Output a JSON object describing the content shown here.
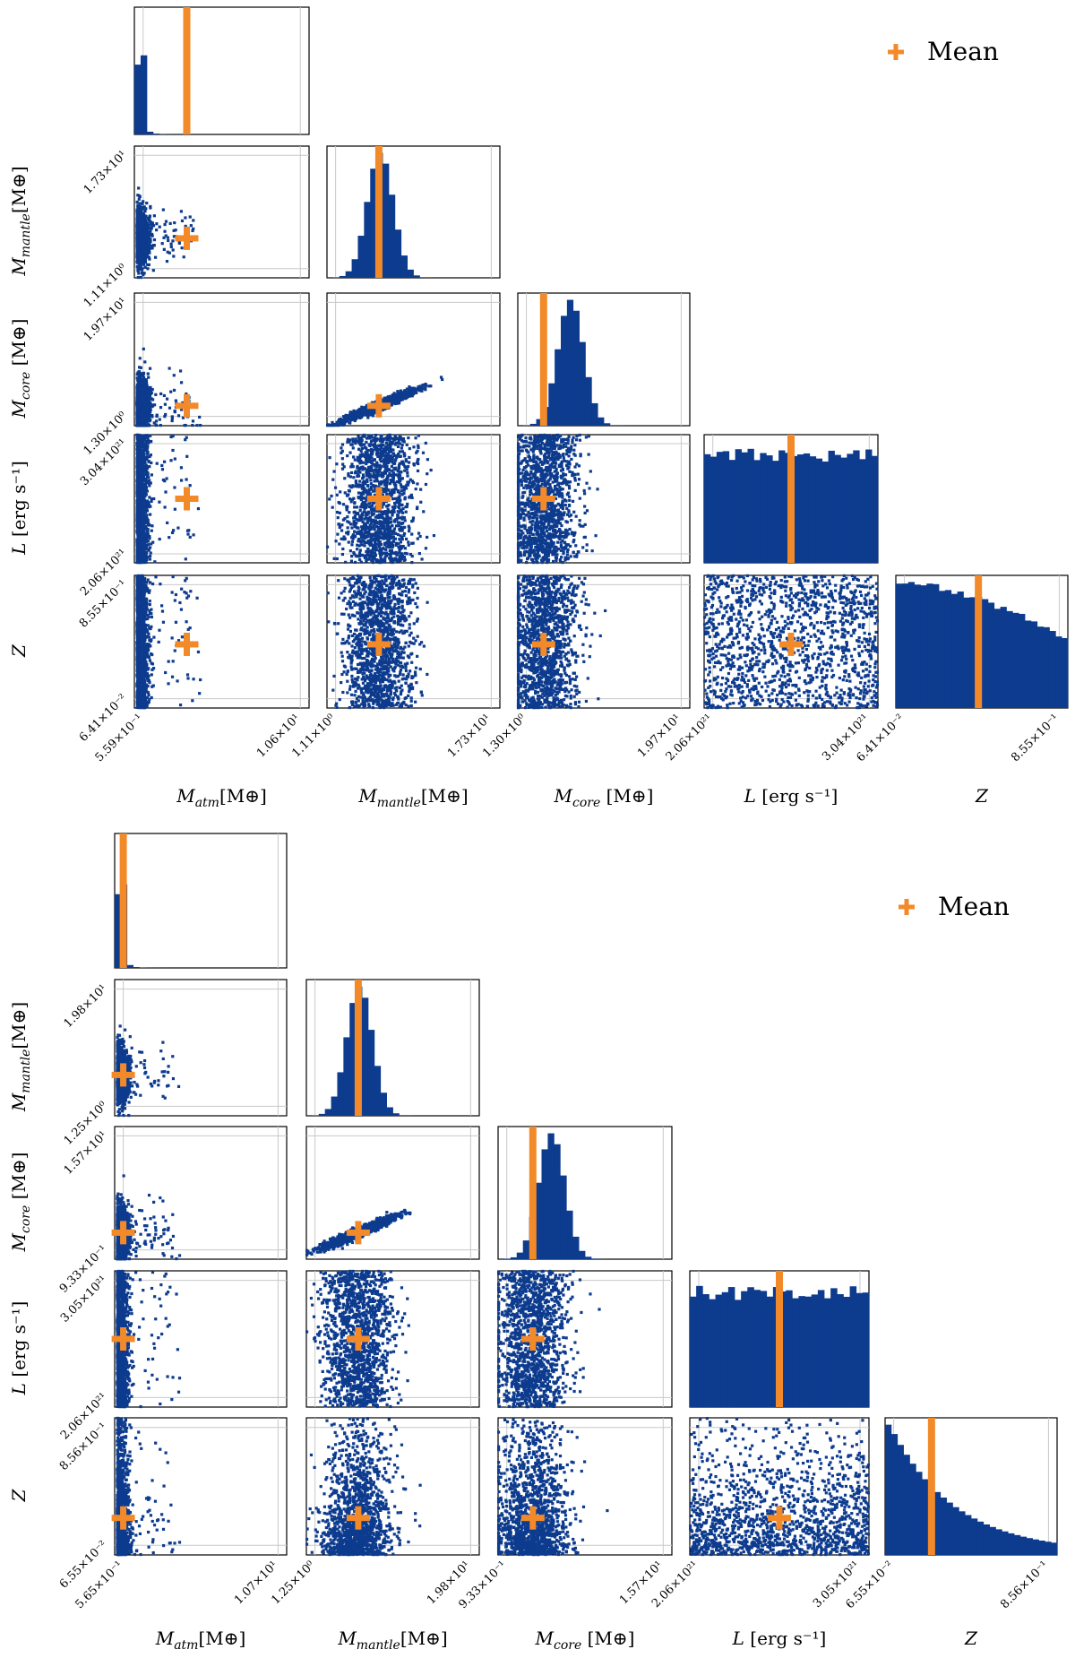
{
  "chart_data": [
    {
      "type": "corner",
      "legend": {
        "label": "Mean",
        "marker": "+",
        "location": "top-right"
      },
      "parameters": [
        {
          "label_main": "M",
          "label_sub": "atm",
          "label_rest": "[M⊕]",
          "ticks": [
            "5.59×10⁻¹",
            "1.06×10¹"
          ],
          "y_ticks": [],
          "mean": 0.3
        },
        {
          "label_main": "M",
          "label_sub": "mantle",
          "label_rest": "[M⊕]",
          "ticks": [
            "1.11×10⁰",
            "1.73×10¹"
          ],
          "y_ticks": [
            "1.11×10⁰",
            "1.73×10¹"
          ],
          "mean": 0.3
        },
        {
          "label_main": "M",
          "label_sub": "core",
          "label_rest": " [M⊕]",
          "ticks": [
            "1.30×10⁰",
            "1.97×10¹"
          ],
          "y_ticks": [
            "1.30×10⁰",
            "1.97×10¹"
          ],
          "mean": 0.15
        },
        {
          "label_main": "L",
          "label_sub": "",
          "label_rest": " [erg s⁻¹]",
          "ticks": [
            "2.06×10²¹",
            "3.04×10²¹"
          ],
          "y_ticks": [
            "2.06×10²¹",
            "3.04×10²¹"
          ],
          "mean": 0.5
        },
        {
          "label_main": "Z",
          "label_sub": "",
          "label_rest": "",
          "ticks": [
            "6.41×10⁻²",
            "8.55×10⁻¹"
          ],
          "y_ticks": [
            "6.41×10⁻²",
            "8.55×10⁻¹"
          ],
          "mean": 0.48
        }
      ],
      "hist_shapes": [
        "sharp",
        "peak",
        "peak",
        "flat",
        "descend-slight"
      ]
    },
    {
      "type": "corner",
      "legend": {
        "label": "Mean",
        "marker": "+",
        "location": "top-right"
      },
      "parameters": [
        {
          "label_main": "M",
          "label_sub": "atm",
          "label_rest": "[M⊕]",
          "ticks": [
            "5.65×10⁻¹",
            "1.07×10¹"
          ],
          "y_ticks": [],
          "mean": 0.05
        },
        {
          "label_main": "M",
          "label_sub": "mantle",
          "label_rest": "[M⊕]",
          "ticks": [
            "1.25×10⁰",
            "1.98×10¹"
          ],
          "y_ticks": [
            "1.25×10⁰",
            "1.98×10¹"
          ],
          "mean": 0.3
        },
        {
          "label_main": "M",
          "label_sub": "core",
          "label_rest": " [M⊕]",
          "ticks": [
            "9.33×10⁻¹",
            "1.57×10¹"
          ],
          "y_ticks": [
            "9.33×10⁻¹",
            "1.57×10¹"
          ],
          "mean": 0.2
        },
        {
          "label_main": "L",
          "label_sub": "",
          "label_rest": " [erg s⁻¹]",
          "ticks": [
            "2.06×10²¹",
            "3.05×10²¹"
          ],
          "y_ticks": [
            "2.06×10²¹",
            "3.05×10²¹"
          ],
          "mean": 0.5
        },
        {
          "label_main": "Z",
          "label_sub": "",
          "label_rest": "",
          "ticks": [
            "6.55×10⁻²",
            "8.56×10⁻¹"
          ],
          "y_ticks": [
            "6.55×10⁻²",
            "8.56×10⁻¹"
          ],
          "mean": 0.27
        }
      ],
      "hist_shapes": [
        "sharp",
        "peak",
        "peak",
        "flat",
        "descend"
      ]
    }
  ],
  "colors": {
    "samples": "#0d3b8e",
    "mean": "#f28a2a",
    "axis": "#000000",
    "grid": "#c8c8c8"
  }
}
